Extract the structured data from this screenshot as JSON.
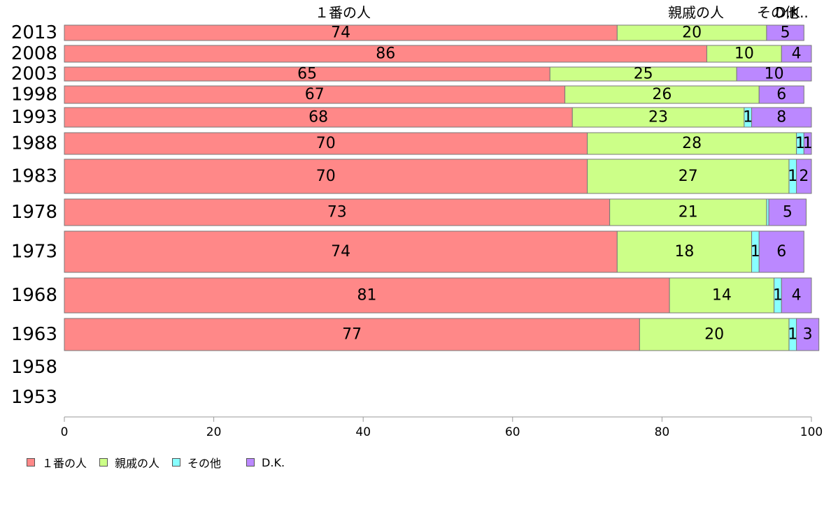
{
  "chart_data": {
    "type": "bar",
    "orientation": "horizontal",
    "stacked": true,
    "categories": [
      "2013",
      "2008",
      "2003",
      "1998",
      "1993",
      "1988",
      "1983",
      "1978",
      "1973",
      "1968",
      "1963",
      "1958",
      "1953"
    ],
    "series": [
      {
        "name": "１番の人",
        "color": "#ff8888",
        "values": [
          74,
          86,
          65,
          67,
          68,
          70,
          70,
          73,
          74,
          81,
          77,
          null,
          null
        ]
      },
      {
        "name": "親戚の人",
        "color": "#ccff88",
        "values": [
          20,
          10,
          25,
          26,
          23,
          28,
          27,
          21,
          18,
          14,
          20,
          null,
          null
        ]
      },
      {
        "name": "その他",
        "color": "#88ffff",
        "values": [
          0,
          0,
          0,
          0,
          1,
          1,
          1,
          0.3,
          1,
          1,
          1,
          null,
          null
        ]
      },
      {
        "name": "D.K.",
        "color": "#bb88ff",
        "values": [
          5,
          4,
          10,
          6,
          8,
          1,
          2,
          5,
          6,
          4,
          3,
          null,
          null
        ]
      }
    ],
    "xlim": [
      0,
      100
    ],
    "xticks": [
      0,
      20,
      40,
      60,
      80,
      100
    ],
    "top_labels": [
      "１番の人",
      "親戚の人",
      "その他",
      "D.K.."
    ],
    "legend_position": "bottom-left",
    "grid": false
  }
}
